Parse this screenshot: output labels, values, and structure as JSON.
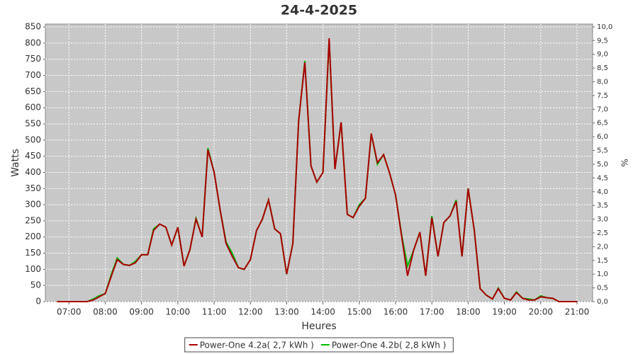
{
  "chart_data": {
    "type": "line",
    "title": "24-4-2025",
    "x_label": "Heures",
    "y_label": "Watts",
    "y2_label": "%",
    "x": [
      6.67,
      7.0,
      7.5,
      7.67,
      7.83,
      8.0,
      8.17,
      8.33,
      8.5,
      8.67,
      8.83,
      9.0,
      9.17,
      9.33,
      9.5,
      9.67,
      9.83,
      10.0,
      10.17,
      10.33,
      10.5,
      10.67,
      10.83,
      11.0,
      11.17,
      11.33,
      11.5,
      11.67,
      11.83,
      12.0,
      12.17,
      12.33,
      12.5,
      12.67,
      12.83,
      13.0,
      13.17,
      13.33,
      13.5,
      13.67,
      13.83,
      14.0,
      14.17,
      14.33,
      14.5,
      14.67,
      14.83,
      15.0,
      15.17,
      15.33,
      15.5,
      15.67,
      15.83,
      16.0,
      16.17,
      16.33,
      16.5,
      16.67,
      16.83,
      17.0,
      17.17,
      17.33,
      17.5,
      17.67,
      17.83,
      18.0,
      18.17,
      18.33,
      18.5,
      18.67,
      18.83,
      19.0,
      19.17,
      19.33,
      19.5,
      19.67,
      19.83,
      20.0,
      20.17,
      20.33,
      20.5,
      21.0
    ],
    "series": [
      {
        "name": "Power-One 4.2a( 2,7 kWh )",
        "color": "#aa0000",
        "values": [
          0,
          0,
          0,
          5,
          15,
          25,
          80,
          130,
          115,
          112,
          120,
          145,
          145,
          220,
          240,
          230,
          175,
          230,
          110,
          160,
          255,
          200,
          470,
          400,
          280,
          180,
          140,
          105,
          100,
          130,
          220,
          255,
          315,
          225,
          210,
          85,
          180,
          560,
          740,
          420,
          370,
          400,
          815,
          410,
          555,
          270,
          260,
          295,
          320,
          520,
          430,
          455,
          400,
          330,
          200,
          80,
          160,
          215,
          80,
          260,
          140,
          245,
          265,
          310,
          140,
          350,
          220,
          40,
          20,
          8,
          40,
          10,
          5,
          28,
          10,
          5,
          5,
          15,
          12,
          10,
          0,
          0
        ]
      },
      {
        "name": "Power-One 4.2b( 2,8 kWh )",
        "color": "#00bb00",
        "values": [
          0,
          0,
          0,
          8,
          18,
          25,
          85,
          135,
          115,
          112,
          125,
          145,
          145,
          225,
          240,
          230,
          175,
          230,
          110,
          160,
          258,
          200,
          475,
          400,
          280,
          185,
          150,
          105,
          100,
          130,
          220,
          255,
          315,
          225,
          210,
          85,
          180,
          560,
          745,
          420,
          370,
          400,
          810,
          410,
          555,
          270,
          260,
          300,
          320,
          520,
          425,
          455,
          400,
          330,
          205,
          110,
          160,
          215,
          80,
          265,
          140,
          245,
          265,
          315,
          140,
          350,
          220,
          40,
          20,
          8,
          42,
          10,
          5,
          30,
          10,
          8,
          5,
          18,
          12,
          10,
          0,
          0
        ]
      }
    ],
    "xlim": [
      6.35,
      21.43
    ],
    "xticks": [
      {
        "value": 7,
        "label": "07:00"
      },
      {
        "value": 8,
        "label": "08:00"
      },
      {
        "value": 9,
        "label": "09:00"
      },
      {
        "value": 10,
        "label": "10:00"
      },
      {
        "value": 11,
        "label": "11:00"
      },
      {
        "value": 12,
        "label": "12:00"
      },
      {
        "value": 13,
        "label": "13:00"
      },
      {
        "value": 14,
        "label": "14:00"
      },
      {
        "value": 15,
        "label": "15:00"
      },
      {
        "value": 16,
        "label": "16:00"
      },
      {
        "value": 17,
        "label": "17:00"
      },
      {
        "value": 18,
        "label": "18:00"
      },
      {
        "value": 19,
        "label": "19:00"
      },
      {
        "value": 20,
        "label": "20:00"
      },
      {
        "value": 21,
        "label": "21:00"
      }
    ],
    "ylim": [
      0,
      859
    ],
    "yticks": [
      0,
      50,
      100,
      150,
      200,
      250,
      300,
      350,
      400,
      450,
      500,
      550,
      600,
      650,
      700,
      750,
      800,
      850
    ],
    "y2lim": [
      0,
      10.1
    ],
    "y2ticks": [
      {
        "value": 0,
        "label": "0,0"
      },
      {
        "value": 0.5,
        "label": "0,5"
      },
      {
        "value": 1,
        "label": "1,0"
      },
      {
        "value": 1.5,
        "label": "1,5"
      },
      {
        "value": 2,
        "label": "2,0"
      },
      {
        "value": 2.5,
        "label": "2,5"
      },
      {
        "value": 3,
        "label": "3,0"
      },
      {
        "value": 3.5,
        "label": "3,5"
      },
      {
        "value": 4,
        "label": "4,0"
      },
      {
        "value": 4.5,
        "label": "4,5"
      },
      {
        "value": 5,
        "label": "5,0"
      },
      {
        "value": 5.5,
        "label": "5,5"
      },
      {
        "value": 6,
        "label": "6,0"
      },
      {
        "value": 6.5,
        "label": "6,5"
      },
      {
        "value": 7,
        "label": "7,0"
      },
      {
        "value": 7.5,
        "label": "7,5"
      },
      {
        "value": 8,
        "label": "8,0"
      },
      {
        "value": 8.5,
        "label": "8,5"
      },
      {
        "value": 9,
        "label": "9,0"
      },
      {
        "value": 9.5,
        "label": "9,5"
      },
      {
        "value": 10,
        "label": "10,0"
      }
    ],
    "grid": true,
    "legend": "bottom"
  }
}
